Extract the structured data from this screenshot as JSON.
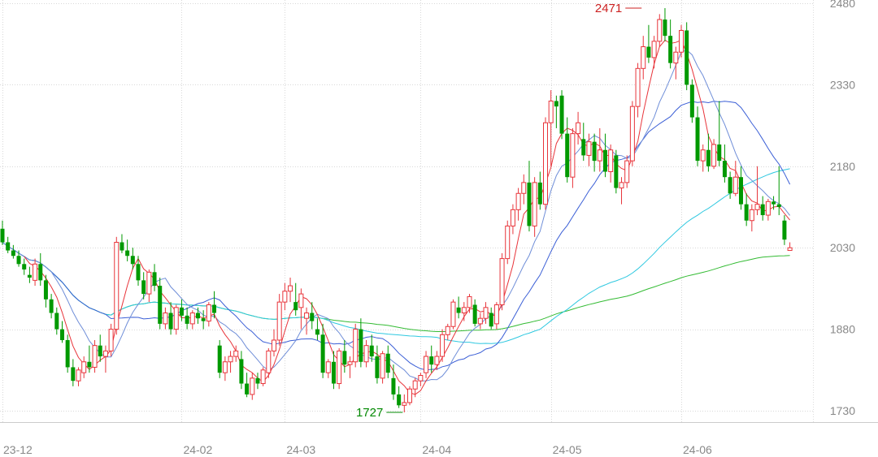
{
  "chart_data": {
    "type": "candlestick",
    "ylim": [
      1715,
      2490
    ],
    "y_ticks": [
      2480,
      2330,
      2180,
      2030,
      1880,
      1730
    ],
    "x_ticks": [
      {
        "label": "23-12",
        "bar": 0
      },
      {
        "label": "24-02",
        "bar": 33
      },
      {
        "label": "24-03",
        "bar": 52
      },
      {
        "label": "24-04",
        "bar": 77
      },
      {
        "label": "24-05",
        "bar": 101
      },
      {
        "label": "24-06",
        "bar": 125
      }
    ],
    "grid": true,
    "annotations": [
      {
        "label": "2471",
        "bar": 118,
        "value": 2471,
        "kind": "high",
        "color": "#cc2222"
      },
      {
        "label": "1727",
        "bar": 74,
        "value": 1727,
        "kind": "low",
        "color": "#008800"
      }
    ],
    "colors": {
      "up": "#e8343a",
      "down": "#009900",
      "grid": "#d8d8d8",
      "axis_text": "#888888",
      "ma5": "#e8343a",
      "ma10": "#6f8ed8",
      "ma20": "#3b5fd6",
      "ma60": "#2ec8e0",
      "ma120": "#33bb33"
    },
    "candles": [
      [
        2065,
        2080,
        2035,
        2040
      ],
      [
        2040,
        2050,
        2020,
        2025
      ],
      [
        2025,
        2035,
        2010,
        2015
      ],
      [
        2015,
        2025,
        1995,
        2000
      ],
      [
        2000,
        2010,
        1980,
        1990
      ],
      [
        1980,
        1995,
        1965,
        1975
      ],
      [
        1970,
        2010,
        1960,
        2000
      ],
      [
        2000,
        2020,
        1960,
        1970
      ],
      [
        1970,
        1980,
        1920,
        1935
      ],
      [
        1935,
        1945,
        1900,
        1910
      ],
      [
        1910,
        1920,
        1870,
        1880
      ],
      [
        1880,
        1895,
        1855,
        1860
      ],
      [
        1860,
        1870,
        1800,
        1810
      ],
      [
        1810,
        1825,
        1775,
        1785
      ],
      [
        1785,
        1810,
        1775,
        1805
      ],
      [
        1800,
        1830,
        1790,
        1820
      ],
      [
        1820,
        1850,
        1800,
        1810
      ],
      [
        1810,
        1860,
        1800,
        1850
      ],
      [
        1850,
        1870,
        1820,
        1830
      ],
      [
        1830,
        1850,
        1800,
        1840
      ],
      [
        1840,
        1890,
        1830,
        1880
      ],
      [
        1880,
        2050,
        1870,
        2040
      ],
      [
        2040,
        2055,
        2020,
        2025
      ],
      [
        2025,
        2045,
        2005,
        2015
      ],
      [
        2015,
        2030,
        1990,
        2000
      ],
      [
        2000,
        2015,
        1960,
        1970
      ],
      [
        1970,
        1985,
        1935,
        1945
      ],
      [
        1945,
        1990,
        1930,
        1985
      ],
      [
        1985,
        2000,
        1950,
        1960
      ],
      [
        1960,
        1975,
        1880,
        1890
      ],
      [
        1890,
        1920,
        1880,
        1910
      ],
      [
        1910,
        1930,
        1870,
        1880
      ],
      [
        1880,
        1925,
        1870,
        1920
      ],
      [
        1920,
        1935,
        1895,
        1905
      ],
      [
        1905,
        1920,
        1880,
        1890
      ],
      [
        1890,
        1915,
        1880,
        1910
      ],
      [
        1910,
        1920,
        1890,
        1900
      ],
      [
        1900,
        1915,
        1880,
        1895
      ],
      [
        1895,
        1930,
        1885,
        1925
      ],
      [
        1925,
        1950,
        1900,
        1910
      ],
      [
        1850,
        1860,
        1790,
        1800
      ],
      [
        1800,
        1830,
        1785,
        1820
      ],
      [
        1820,
        1840,
        1800,
        1830
      ],
      [
        1830,
        1850,
        1820,
        1840
      ],
      [
        1825,
        1840,
        1770,
        1780
      ],
      [
        1780,
        1800,
        1755,
        1760
      ],
      [
        1760,
        1800,
        1750,
        1790
      ],
      [
        1790,
        1800,
        1770,
        1780
      ],
      [
        1780,
        1810,
        1775,
        1805
      ],
      [
        1800,
        1845,
        1790,
        1840
      ],
      [
        1840,
        1880,
        1830,
        1860
      ],
      [
        1860,
        1945,
        1850,
        1930
      ],
      [
        1930,
        1965,
        1915,
        1950
      ],
      [
        1950,
        1975,
        1930,
        1960
      ],
      [
        1930,
        1965,
        1905,
        1915
      ],
      [
        1920,
        1955,
        1880,
        1945
      ],
      [
        1900,
        1920,
        1870,
        1910
      ],
      [
        1910,
        1930,
        1880,
        1895
      ],
      [
        1880,
        1900,
        1860,
        1870
      ],
      [
        1870,
        1890,
        1790,
        1800
      ],
      [
        1800,
        1825,
        1790,
        1820
      ],
      [
        1820,
        1840,
        1770,
        1780
      ],
      [
        1780,
        1845,
        1770,
        1840
      ],
      [
        1840,
        1860,
        1800,
        1815
      ],
      [
        1815,
        1830,
        1790,
        1820
      ],
      [
        1820,
        1890,
        1810,
        1880
      ],
      [
        1880,
        1900,
        1810,
        1820
      ],
      [
        1820,
        1860,
        1810,
        1850
      ],
      [
        1850,
        1870,
        1820,
        1830
      ],
      [
        1830,
        1850,
        1780,
        1790
      ],
      [
        1790,
        1840,
        1780,
        1835
      ],
      [
        1835,
        1850,
        1790,
        1800
      ],
      [
        1790,
        1815,
        1750,
        1760
      ],
      [
        1760,
        1775,
        1735,
        1740
      ],
      [
        1740,
        1760,
        1727,
        1745
      ],
      [
        1745,
        1775,
        1740,
        1770
      ],
      [
        1770,
        1790,
        1755,
        1785
      ],
      [
        1785,
        1800,
        1775,
        1795
      ],
      [
        1800,
        1840,
        1790,
        1830
      ],
      [
        1830,
        1850,
        1800,
        1815
      ],
      [
        1815,
        1840,
        1805,
        1830
      ],
      [
        1830,
        1880,
        1820,
        1870
      ],
      [
        1870,
        1890,
        1860,
        1885
      ],
      [
        1885,
        1935,
        1880,
        1930
      ],
      [
        1920,
        1940,
        1900,
        1910
      ],
      [
        1910,
        1930,
        1895,
        1920
      ],
      [
        1920,
        1945,
        1910,
        1940
      ],
      [
        1925,
        1935,
        1885,
        1890
      ],
      [
        1890,
        1910,
        1880,
        1900
      ],
      [
        1900,
        1930,
        1890,
        1920
      ],
      [
        1910,
        1920,
        1880,
        1885
      ],
      [
        1890,
        1930,
        1880,
        1925
      ],
      [
        1925,
        2020,
        1915,
        2010
      ],
      [
        2010,
        2080,
        2000,
        2070
      ],
      [
        2070,
        2110,
        2055,
        2100
      ],
      [
        2100,
        2140,
        2080,
        2130
      ],
      [
        2130,
        2165,
        2110,
        2150
      ],
      [
        2150,
        2190,
        2060,
        2070
      ],
      [
        2070,
        2160,
        2050,
        2150
      ],
      [
        2150,
        2170,
        2100,
        2110
      ],
      [
        2110,
        2270,
        2100,
        2260
      ],
      [
        2260,
        2320,
        2180,
        2300
      ],
      [
        2300,
        2310,
        2250,
        2290
      ],
      [
        2310,
        2320,
        2230,
        2240
      ],
      [
        2240,
        2270,
        2150,
        2160
      ],
      [
        2160,
        2250,
        2140,
        2240
      ],
      [
        2240,
        2280,
        2220,
        2260
      ],
      [
        2230,
        2260,
        2190,
        2200
      ],
      [
        2200,
        2240,
        2180,
        2225
      ],
      [
        2225,
        2240,
        2170,
        2190
      ],
      [
        2190,
        2250,
        2170,
        2210
      ],
      [
        2210,
        2240,
        2160,
        2170
      ],
      [
        2170,
        2220,
        2150,
        2210
      ],
      [
        2200,
        2210,
        2130,
        2140
      ],
      [
        2140,
        2160,
        2110,
        2150
      ],
      [
        2150,
        2200,
        2140,
        2190
      ],
      [
        2190,
        2300,
        2180,
        2290
      ],
      [
        2290,
        2370,
        2270,
        2360
      ],
      [
        2360,
        2420,
        2340,
        2400
      ],
      [
        2400,
        2440,
        2370,
        2380
      ],
      [
        2380,
        2420,
        2360,
        2410
      ],
      [
        2410,
        2460,
        2400,
        2450
      ],
      [
        2450,
        2471,
        2410,
        2420
      ],
      [
        2420,
        2450,
        2360,
        2370
      ],
      [
        2370,
        2400,
        2340,
        2390
      ],
      [
        2390,
        2440,
        2380,
        2430
      ],
      [
        2430,
        2445,
        2320,
        2330
      ],
      [
        2330,
        2340,
        2260,
        2270
      ],
      [
        2270,
        2290,
        2180,
        2190
      ],
      [
        2190,
        2220,
        2170,
        2210
      ],
      [
        2210,
        2240,
        2170,
        2180
      ],
      [
        2180,
        2230,
        2175,
        2220
      ],
      [
        2220,
        2300,
        2180,
        2190
      ],
      [
        2190,
        2220,
        2150,
        2160
      ],
      [
        2160,
        2170,
        2120,
        2130
      ],
      [
        2130,
        2190,
        2125,
        2160
      ],
      [
        2160,
        2180,
        2100,
        2110
      ],
      [
        2110,
        2130,
        2070,
        2080
      ],
      [
        2080,
        2110,
        2060,
        2100
      ],
      [
        2100,
        2180,
        2090,
        2110
      ],
      [
        2110,
        2125,
        2080,
        2090
      ],
      [
        2090,
        2120,
        2080,
        2115
      ],
      [
        2115,
        2125,
        2100,
        2110
      ],
      [
        2110,
        2180,
        2090,
        2105
      ],
      [
        2080,
        2090,
        2035,
        2045
      ],
      [
        2025,
        2040,
        2025,
        2030
      ]
    ]
  }
}
